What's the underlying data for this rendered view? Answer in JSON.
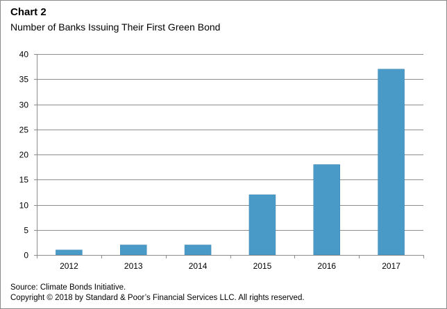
{
  "header": {
    "title": "Chart 2",
    "subtitle": "Number of Banks Issuing Their First Green Bond"
  },
  "footer": {
    "source": "Source: Climate Bonds Initiative.",
    "copyright": "Copyright © 2018 by Standard & Poor’s Financial Services LLC. All rights reserved."
  },
  "colors": {
    "bar": "#4a9ac8",
    "bar_edge": "#3e87b3",
    "grid": "#8c8c8c",
    "axis": "#8c8c8c"
  },
  "chart_data": {
    "type": "bar",
    "title": "Chart 2",
    "subtitle": "Number of Banks Issuing Their First Green Bond",
    "categories": [
      "2012",
      "2013",
      "2014",
      "2015",
      "2016",
      "2017"
    ],
    "values": [
      1,
      2,
      2,
      12,
      18,
      37
    ],
    "yticks": [
      0,
      5,
      10,
      15,
      20,
      25,
      30,
      35,
      40
    ],
    "ylim": [
      0,
      40
    ],
    "xlabel": "",
    "ylabel": "",
    "grid": true,
    "legend": false
  }
}
